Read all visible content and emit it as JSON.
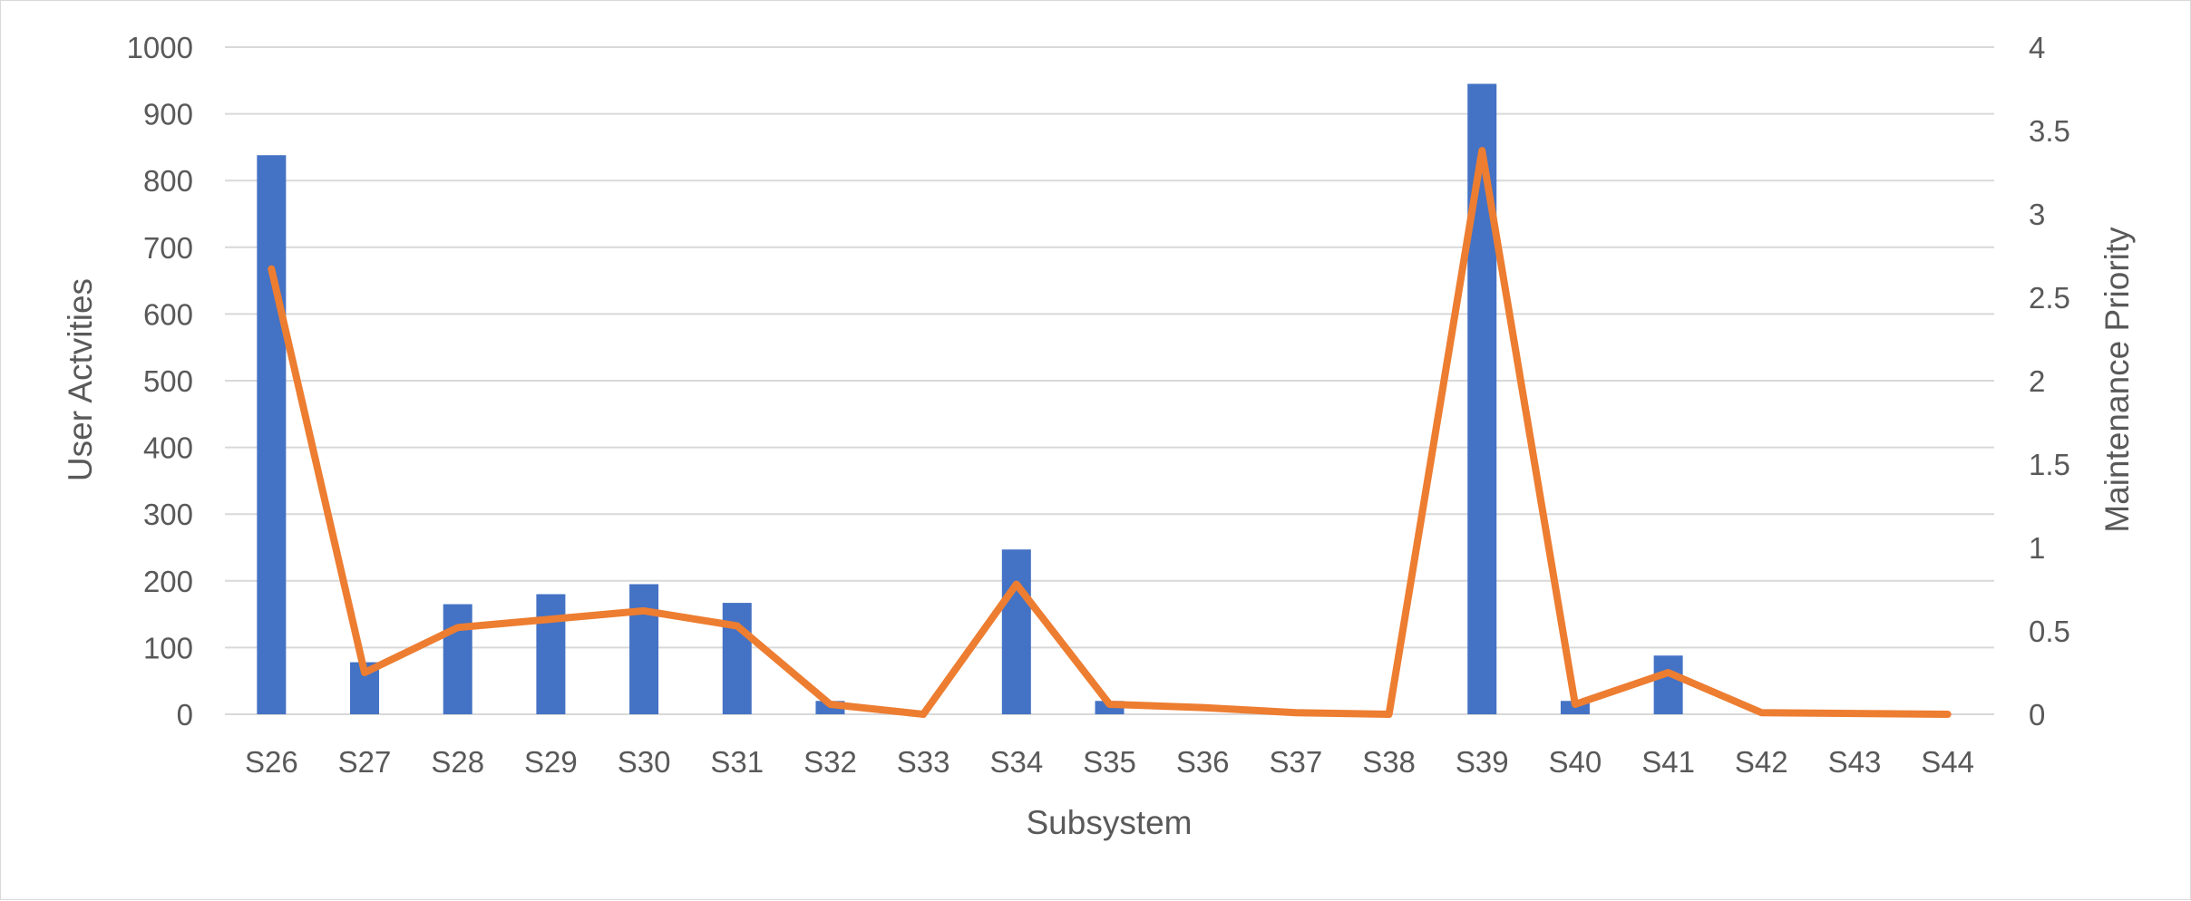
{
  "chart_data": {
    "type": "bar",
    "title": "",
    "xlabel": "Subsystem",
    "ylabel": "User Actvities",
    "y2label": "Maintenance Priority",
    "categories": [
      "S26",
      "S27",
      "S28",
      "S29",
      "S30",
      "S31",
      "S32",
      "S33",
      "S34",
      "S35",
      "S36",
      "S37",
      "S38",
      "S39",
      "S40",
      "S41",
      "S42",
      "S43",
      "S44"
    ],
    "ylim": [
      0,
      1000
    ],
    "yticks": [
      0,
      100,
      200,
      300,
      400,
      500,
      600,
      700,
      800,
      900,
      1000
    ],
    "y2lim": [
      0,
      4
    ],
    "y2ticks": [
      "0",
      "0.5",
      "1",
      "1.5",
      "2",
      "2.5",
      "3",
      "3.5",
      "4"
    ],
    "grid": true,
    "legend": "none",
    "series": [
      {
        "type": "bar",
        "axis": "left",
        "color": "#4472c4",
        "values": [
          838,
          78,
          165,
          180,
          195,
          167,
          20,
          0,
          247,
          20,
          0,
          0,
          0,
          945,
          20,
          88,
          0,
          0,
          0
        ]
      },
      {
        "type": "line",
        "axis": "right",
        "color": "#ed7d31",
        "values": [
          2.67,
          0.25,
          0.52,
          0.57,
          0.62,
          0.53,
          0.06,
          0.0,
          0.78,
          0.06,
          0.04,
          0.01,
          0.0,
          3.38,
          0.06,
          0.25,
          0.01,
          0.005,
          0.0
        ]
      }
    ]
  }
}
